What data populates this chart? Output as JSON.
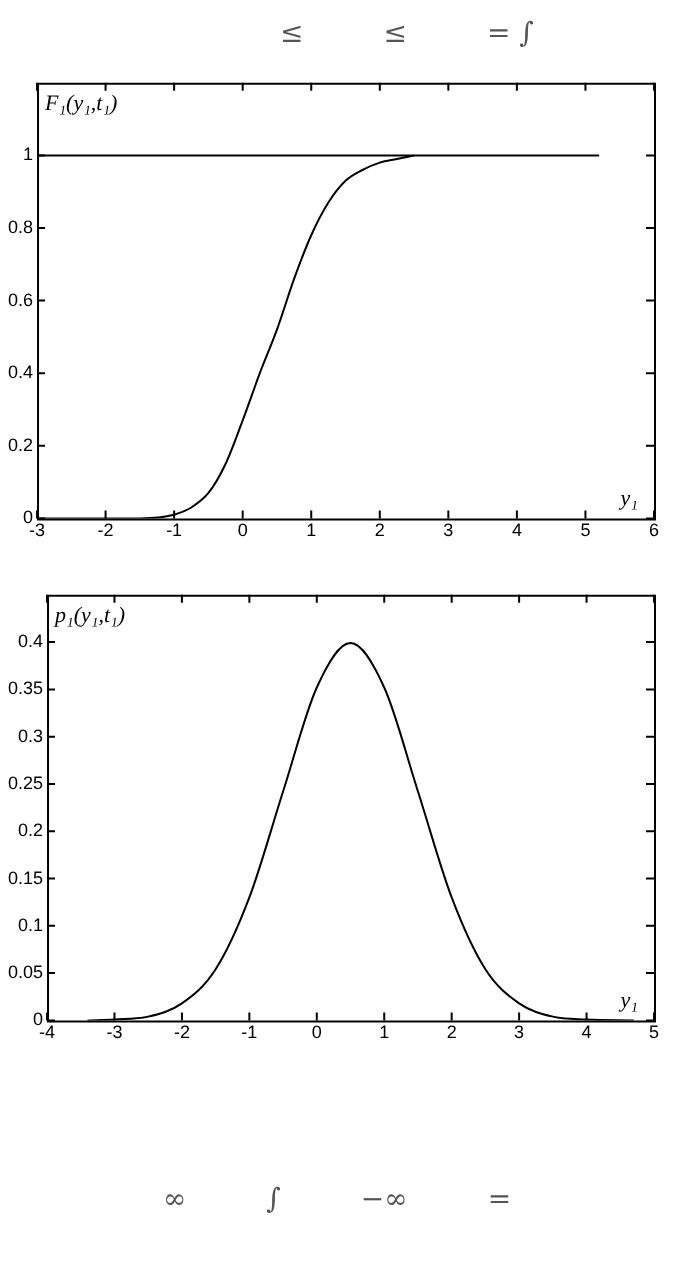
{
  "chart_data": [
    {
      "type": "line",
      "xlabel": "y₁",
      "ylabel": "F₁(y₁,t₁)",
      "annotations": [
        "≤",
        "≤",
        "= ∫"
      ],
      "xlim": [
        -3,
        6
      ],
      "xticks": [
        -3,
        -2,
        -1,
        0,
        1,
        2,
        3,
        4,
        5,
        6
      ],
      "ylim": [
        0,
        1.2
      ],
      "yticks": [
        0,
        0.2,
        0.4,
        0.6,
        0.8,
        1
      ],
      "legend": false,
      "series": [
        {
          "color": "#000000",
          "x": [
            -3,
            -2,
            -1.5,
            -1,
            -0.75,
            -0.5,
            -0.25,
            0,
            0.25,
            0.5,
            0.75,
            1,
            1.25,
            1.5,
            1.75,
            2,
            2.25,
            2.5
          ],
          "values": [
            0,
            0,
            0,
            0.01,
            0.03,
            0.07,
            0.15,
            0.27,
            0.4,
            0.52,
            0.66,
            0.78,
            0.87,
            0.93,
            0.96,
            0.98,
            0.99,
            1
          ]
        },
        {
          "color": "#000000",
          "x": [
            -3,
            5.2
          ],
          "values": [
            1,
            1
          ]
        }
      ]
    },
    {
      "type": "line",
      "xlabel": "y₁",
      "ylabel": "p₁(y₁,t₁)",
      "annotations": [
        "∞",
        "∫",
        "−∞",
        "="
      ],
      "xlim": [
        -4,
        5
      ],
      "xticks": [
        -4,
        -3,
        -2,
        -1,
        0,
        1,
        2,
        3,
        4,
        5
      ],
      "ylim": [
        0,
        0.45
      ],
      "yticks": [
        0,
        0.05,
        0.1,
        0.15,
        0.2,
        0.25,
        0.3,
        0.35,
        0.4
      ],
      "legend": false,
      "series": [
        {
          "color": "#000000",
          "x": [
            -3.4,
            -3,
            -2.5,
            -2,
            -1.5,
            -1,
            -0.5,
            0,
            0.5,
            1,
            1.5,
            2,
            2.5,
            3,
            3.5,
            4,
            4.7
          ],
          "values": [
            0,
            0.001,
            0.004,
            0.018,
            0.054,
            0.13,
            0.242,
            0.352,
            0.399,
            0.352,
            0.242,
            0.13,
            0.054,
            0.018,
            0.004,
            0.001,
            0
          ]
        }
      ]
    }
  ]
}
